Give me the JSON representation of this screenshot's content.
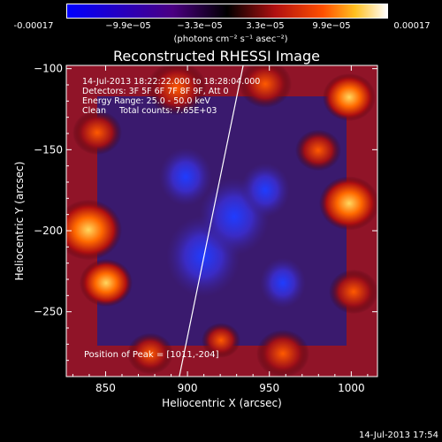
{
  "colorbar": {
    "ticks": [
      "-0.00017",
      "−9.9e−05",
      "−3.3e−05",
      "3.3e−05",
      "9.9e−05",
      "0.00017"
    ],
    "units": "(photons cm⁻² s⁻¹ asec⁻²)",
    "colors": [
      "#0000ff",
      "#4b0082",
      "#000000",
      "#8b0000",
      "#ff4500",
      "#ffa500",
      "#ffffff"
    ]
  },
  "chart_data": {
    "type": "heatmap",
    "title": "Reconstructed RHESSI Image",
    "xlabel": "Heliocentric X (arcsec)",
    "ylabel": "Heliocentric Y (arcsec)",
    "xlim": [
      826,
      1016
    ],
    "ylim": [
      -290,
      -98
    ],
    "xticks": [
      850,
      900,
      950,
      1000
    ],
    "yticks": [
      -100,
      -150,
      -200,
      -250
    ],
    "xtick_labels": [
      "850",
      "900",
      "950",
      "1000"
    ],
    "ytick_labels": [
      "−100",
      "−150",
      "−200",
      "−250"
    ],
    "annotations": [
      "14-Jul-2013 18:22:22.000 to 18:28:04.000",
      "Detectors: 3F 5F 6F 7F 8F 9F, Att 0",
      "Energy Range: 25.0 - 50.0 keV",
      "Clean     Total counts: 7.65E+03"
    ],
    "peak_label": "Position of Peak = [1011,-204]",
    "limb_line": [
      [
        895,
        -290
      ],
      [
        934,
        -98
      ]
    ]
  },
  "timestamp": "14-Jul-2013 17:54"
}
